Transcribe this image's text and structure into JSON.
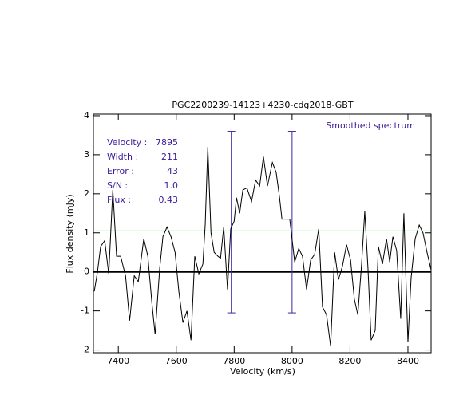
{
  "chart_data": {
    "type": "line",
    "title": "PGC2200239-14123+4230-cdg2018-GBT",
    "x_label": "Velocity (km/s)",
    "y_label": "Flux density (mJy)",
    "annotation": "Smoothed spectrum",
    "stats": [
      {
        "label": "Velocity :",
        "value": "7895"
      },
      {
        "label": "Width :",
        "value": "211"
      },
      {
        "label": "Error :",
        "value": "43"
      },
      {
        "label": "S/N :",
        "value": "1.0"
      },
      {
        "label": "Flux :",
        "value": "0.43"
      }
    ],
    "x": [
      7317,
      7328,
      7339,
      7353,
      7367,
      7381,
      7394,
      7408,
      7425,
      7439,
      7455,
      7469,
      7488,
      7502,
      7516,
      7527,
      7543,
      7554,
      7568,
      7582,
      7596,
      7609,
      7623,
      7637,
      7651,
      7664,
      7678,
      7692,
      7700,
      7709,
      7720,
      7731,
      7744,
      7753,
      7764,
      7777,
      7788,
      7800,
      7808,
      7819,
      7830,
      7844,
      7860,
      7874,
      7888,
      7901,
      7915,
      7932,
      7945,
      7956,
      7965,
      7979,
      7992,
      8009,
      8023,
      8036,
      8050,
      8064,
      8078,
      8092,
      8105,
      8119,
      8133,
      8147,
      8160,
      8174,
      8188,
      8202,
      8215,
      8227,
      8240,
      8251,
      8262,
      8273,
      8287,
      8298,
      8312,
      8326,
      8337,
      8348,
      8361,
      8375,
      8386,
      8400,
      8411,
      8425,
      8439,
      8452,
      8466,
      8480
    ],
    "series": [
      {
        "color": "#000000",
        "values": [
          -0.5,
          0.0,
          0.65,
          0.8,
          -0.05,
          2.1,
          0.4,
          0.4,
          -0.1,
          -1.25,
          -0.1,
          -0.25,
          0.85,
          0.4,
          -0.8,
          -1.6,
          0.1,
          0.9,
          1.15,
          0.9,
          0.5,
          -0.5,
          -1.3,
          -1.0,
          -1.75,
          0.4,
          -0.05,
          0.2,
          1.2,
          3.2,
          1.0,
          0.5,
          0.4,
          0.35,
          1.15,
          -0.45,
          1.1,
          1.3,
          1.9,
          1.5,
          2.1,
          2.15,
          1.8,
          2.35,
          2.2,
          2.95,
          2.2,
          2.8,
          2.55,
          1.95,
          1.35,
          1.35,
          1.35,
          0.25,
          0.6,
          0.4,
          -0.45,
          0.3,
          0.45,
          1.1,
          -0.9,
          -1.1,
          -1.9,
          0.5,
          -0.2,
          0.15,
          0.7,
          0.3,
          -0.7,
          -1.1,
          0.2,
          1.55,
          0.1,
          -1.75,
          -1.5,
          0.65,
          0.2,
          0.85,
          0.25,
          0.9,
          0.55,
          -1.2,
          1.5,
          -1.8,
          -0.15,
          0.85,
          1.2,
          1.0,
          0.5,
          0.05
        ]
      }
    ],
    "vlines": [
      7790,
      8000
    ],
    "vline_range": [
      -1.05,
      3.6
    ],
    "vline_color": "#3a2aa8",
    "hline": 1.05,
    "hline_color": "#33dd33",
    "annotation_color": "#3a1a9a",
    "xlim": [
      7314,
      8480
    ],
    "ylim": [
      -2.07,
      4.04
    ],
    "xticks": [
      7400,
      7600,
      7800,
      8000,
      8200,
      8400
    ],
    "yticks": [
      -2,
      -1,
      0,
      1,
      2,
      3,
      4
    ]
  }
}
